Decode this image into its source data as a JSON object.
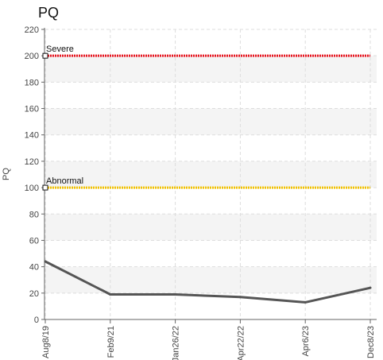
{
  "chart_data": {
    "type": "line",
    "title": "PQ",
    "ylabel": "PQ",
    "xlabel": "",
    "ylim": [
      0,
      220
    ],
    "yticks": [
      0,
      20,
      40,
      60,
      80,
      100,
      120,
      140,
      160,
      180,
      200,
      220
    ],
    "categories": [
      "Aug8/19",
      "Feb9/21",
      "Jan26/22",
      "Apr22/22",
      "Apr6/23",
      "Dec8/23"
    ],
    "series": [
      {
        "values": [
          44,
          19,
          19,
          17,
          13,
          24
        ],
        "color": "#555555"
      }
    ],
    "reference_lines": [
      {
        "label": "Severe",
        "value": 200,
        "color": "#e8141e"
      },
      {
        "label": "Abnormal",
        "value": 100,
        "color": "#f2c200"
      }
    ],
    "grid": true
  }
}
